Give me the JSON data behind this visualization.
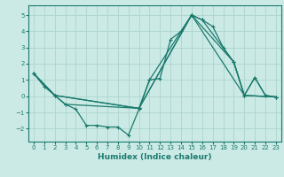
{
  "xlabel": "Humidex (Indice chaleur)",
  "bg_color": "#cceae5",
  "grid_color": "#b0d8d0",
  "line_color": "#1a7a6e",
  "xlim": [
    -0.5,
    23.5
  ],
  "ylim": [
    -2.8,
    5.6
  ],
  "xticks": [
    0,
    1,
    2,
    3,
    4,
    5,
    6,
    7,
    8,
    9,
    10,
    11,
    12,
    13,
    14,
    15,
    16,
    17,
    18,
    19,
    20,
    21,
    22,
    23
  ],
  "yticks": [
    -2,
    -1,
    0,
    1,
    2,
    3,
    4,
    5
  ],
  "series1": [
    [
      0,
      1.4
    ],
    [
      1,
      0.6
    ],
    [
      2,
      0.05
    ],
    [
      3,
      -0.5
    ],
    [
      4,
      -0.8
    ],
    [
      5,
      -1.8
    ],
    [
      6,
      -1.8
    ],
    [
      7,
      -1.9
    ],
    [
      8,
      -1.9
    ],
    [
      9,
      -2.4
    ],
    [
      10,
      -0.8
    ],
    [
      11,
      1.0
    ],
    [
      12,
      1.1
    ],
    [
      13,
      3.5
    ],
    [
      14,
      4.0
    ],
    [
      15,
      5.0
    ],
    [
      16,
      4.7
    ],
    [
      17,
      4.3
    ],
    [
      18,
      3.0
    ],
    [
      19,
      2.1
    ],
    [
      20,
      0.05
    ],
    [
      21,
      1.15
    ],
    [
      22,
      0.05
    ],
    [
      23,
      -0.05
    ]
  ],
  "series2": [
    [
      0,
      1.4
    ],
    [
      2,
      0.05
    ],
    [
      10,
      -0.75
    ],
    [
      15,
      5.0
    ],
    [
      19,
      2.1
    ],
    [
      20,
      0.05
    ],
    [
      21,
      1.15
    ],
    [
      22,
      0.05
    ],
    [
      23,
      -0.05
    ]
  ],
  "series3": [
    [
      0,
      1.4
    ],
    [
      2,
      0.05
    ],
    [
      10,
      -0.75
    ],
    [
      15,
      5.0
    ],
    [
      20,
      0.05
    ],
    [
      23,
      -0.05
    ]
  ],
  "series4": [
    [
      0,
      1.4
    ],
    [
      2,
      0.05
    ],
    [
      3,
      -0.5
    ],
    [
      10,
      -0.75
    ],
    [
      11,
      1.0
    ],
    [
      15,
      5.0
    ],
    [
      16,
      4.7
    ],
    [
      19,
      2.1
    ],
    [
      20,
      0.05
    ],
    [
      23,
      -0.05
    ]
  ]
}
